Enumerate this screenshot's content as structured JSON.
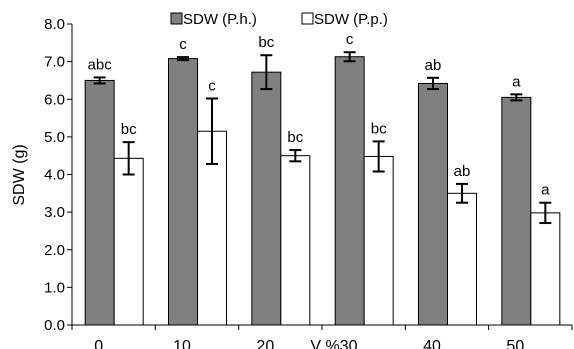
{
  "chart_data": {
    "type": "bar",
    "title": "",
    "xlabel": "V %",
    "ylabel": "SDW (g)",
    "categories": [
      "0",
      "10",
      "20",
      "30",
      "40",
      "50"
    ],
    "ylim": [
      0,
      8
    ],
    "yticks": [
      "0.0",
      "1.0",
      "2.0",
      "3.0",
      "4.0",
      "5.0",
      "6.0",
      "7.0",
      "8.0"
    ],
    "grid": false,
    "legend_position": "top",
    "series": [
      {
        "name": "SDW (P.h.)",
        "color": "#808080",
        "values": [
          6.5,
          7.08,
          6.72,
          7.13,
          6.42,
          6.05
        ],
        "errors": [
          0.08,
          0.04,
          0.45,
          0.12,
          0.15,
          0.08
        ],
        "letters": [
          "abc",
          "c",
          "bc",
          "c",
          "ab",
          "a"
        ]
      },
      {
        "name": "SDW (P.p.)",
        "color": "#ffffff",
        "values": [
          4.43,
          5.15,
          4.5,
          4.48,
          3.5,
          2.98
        ],
        "errors": [
          0.43,
          0.87,
          0.15,
          0.4,
          0.25,
          0.27
        ],
        "letters": [
          "bc",
          "c",
          "bc",
          "bc",
          "ab",
          "a"
        ]
      }
    ]
  }
}
